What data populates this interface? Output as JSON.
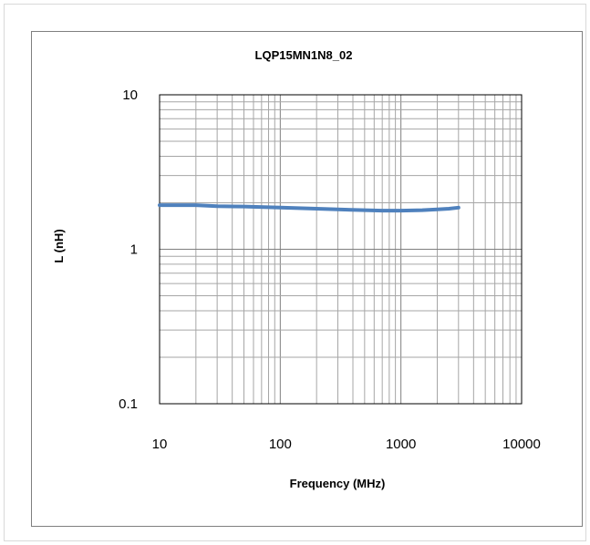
{
  "chart_data": {
    "type": "line",
    "title": "LQP15MN1N8_02",
    "xlabel": "Frequency (MHz)",
    "ylabel": "L (nH)",
    "x_scale": "log",
    "y_scale": "log",
    "xlim": [
      10,
      10000
    ],
    "ylim": [
      0.1,
      10
    ],
    "x_ticks": [
      "10",
      "100",
      "1000",
      "10000"
    ],
    "y_ticks": [
      "0.1",
      "1",
      "10"
    ],
    "grid": true,
    "legend": "none",
    "series": [
      {
        "color": "#4f81bd",
        "x": [
          10,
          20,
          30,
          50,
          100,
          200,
          300,
          500,
          700,
          1000,
          1500,
          2000,
          2500,
          3000
        ],
        "y": [
          1.93,
          1.93,
          1.9,
          1.89,
          1.86,
          1.83,
          1.81,
          1.79,
          1.78,
          1.78,
          1.79,
          1.81,
          1.83,
          1.86
        ]
      }
    ]
  }
}
